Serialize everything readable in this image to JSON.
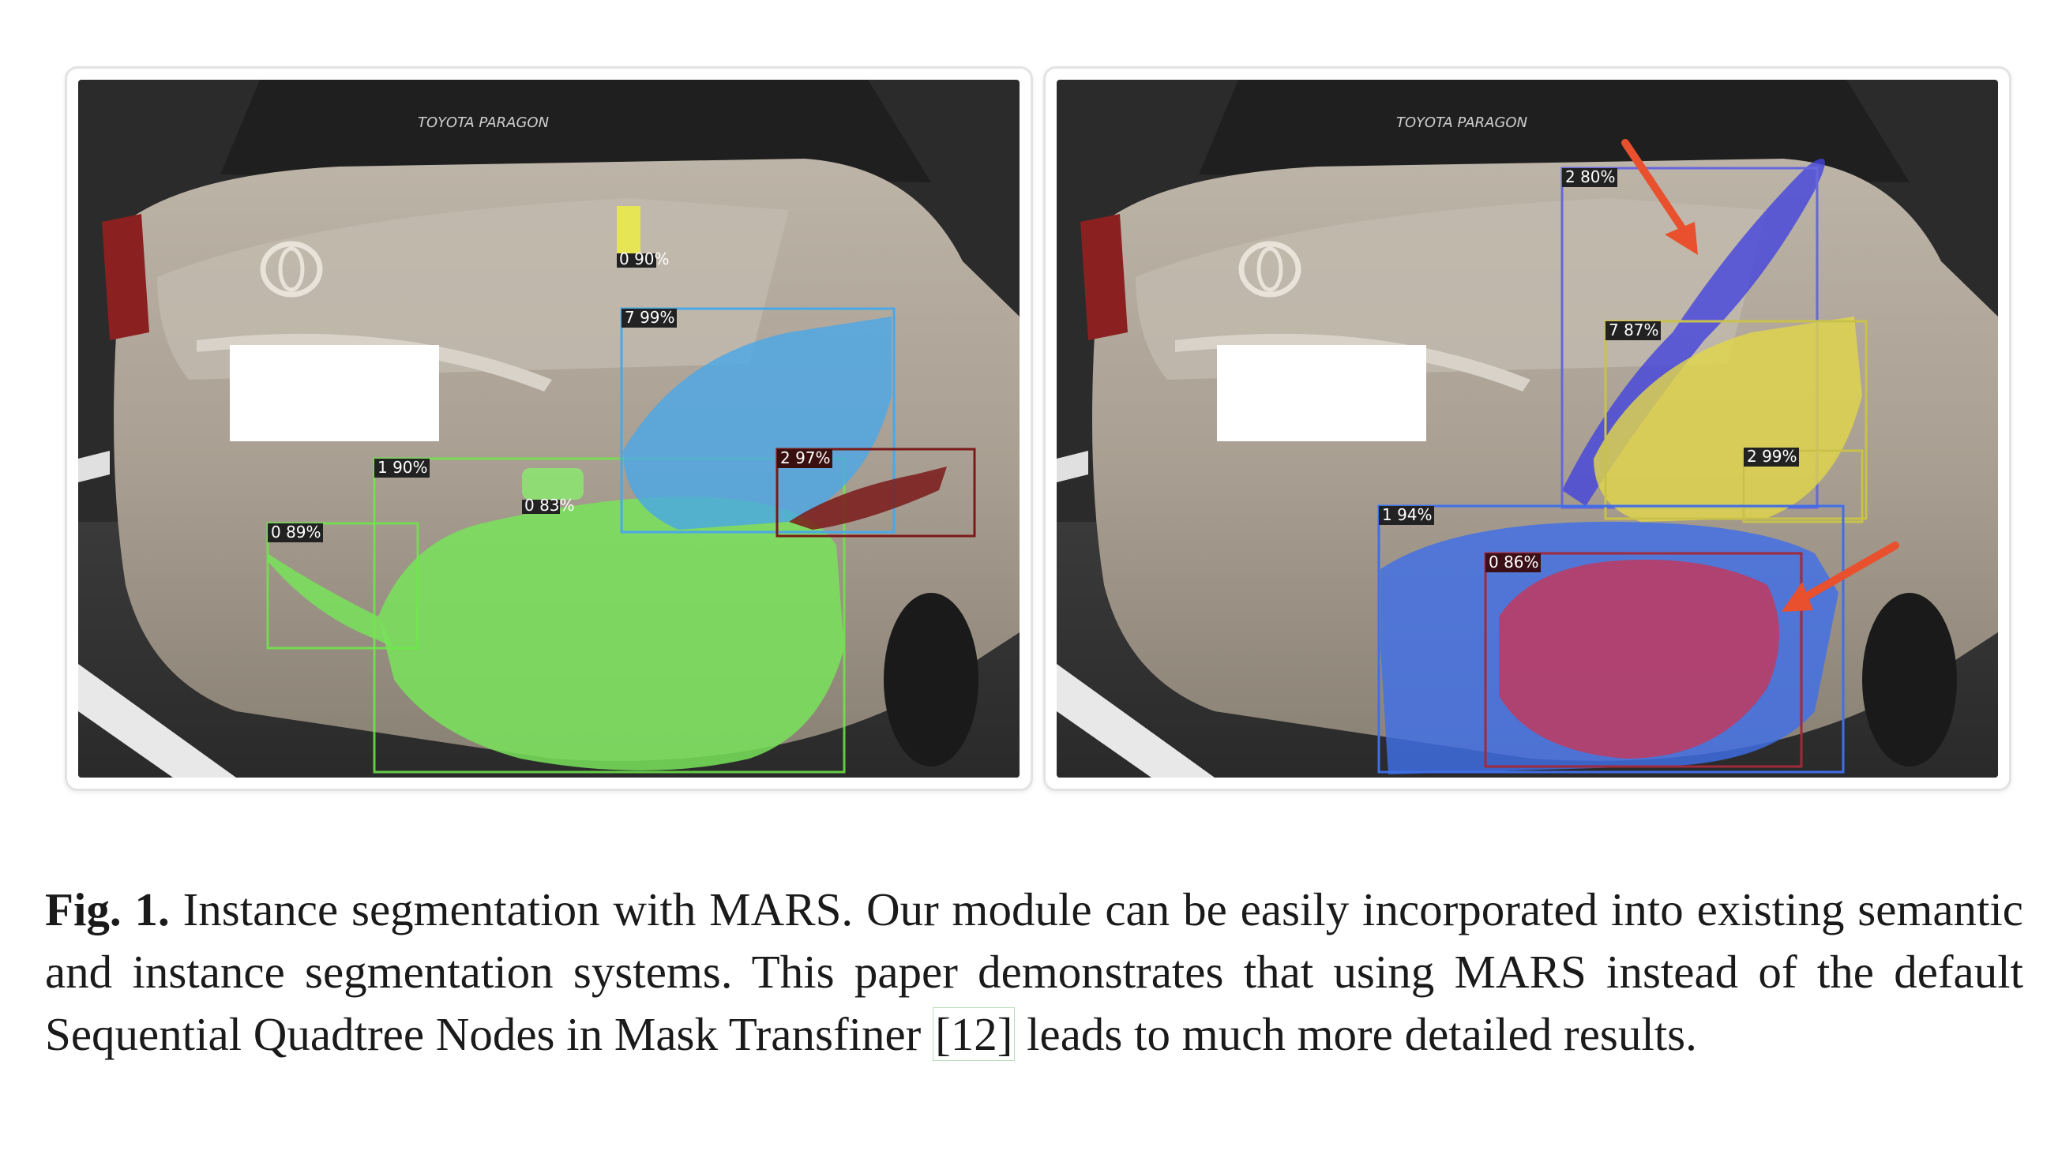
{
  "figure": {
    "left_panel": {
      "plate_text": "TOYOTA PARAGON",
      "detections": [
        {
          "label": "0 90%",
          "color": "#e8e84a"
        },
        {
          "label": "7 99%",
          "color": "#4aa8e8"
        },
        {
          "label": "1 90%",
          "color": "#6fe84a"
        },
        {
          "label": "2 97%",
          "color": "#8b1a1a"
        },
        {
          "label": "0 83%",
          "color": "#6fe84a"
        },
        {
          "label": "0 89%",
          "color": "#6fe84a"
        }
      ]
    },
    "right_panel": {
      "plate_text": "TOYOTA PARAGON",
      "detections": [
        {
          "label": "2 80%",
          "color": "#4444dd"
        },
        {
          "label": "7 87%",
          "color": "#e0d64a"
        },
        {
          "label": "2 99%",
          "color": "#c9c24a"
        },
        {
          "label": "1 94%",
          "color": "#3f6fe8"
        },
        {
          "label": "0 86%",
          "color": "#c0395e"
        }
      ]
    }
  },
  "caption": {
    "fig_label": "Fig. 1.",
    "text_before_cite": "Instance segmentation with MARS. Our module can be easily incorporated into existing semantic and instance segmentation systems. This paper demonstrates that using MARS instead of the default Sequential Quadtree Nodes in Mask Transfiner",
    "cite": "[12]",
    "text_after_cite": "leads to much more detailed results."
  }
}
